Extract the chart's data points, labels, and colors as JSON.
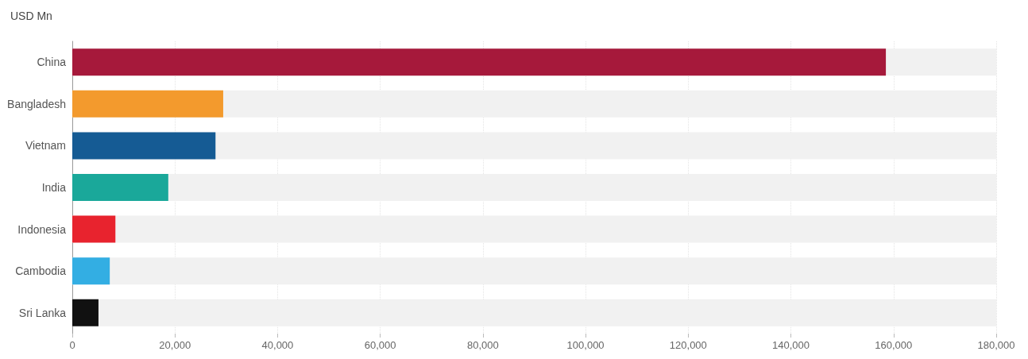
{
  "chart_data": {
    "type": "bar",
    "orientation": "horizontal",
    "ylabel": "USD Mn",
    "categories": [
      "China",
      "Bangladesh",
      "Vietnam",
      "India",
      "Indonesia",
      "Cambodia",
      "Sri Lanka"
    ],
    "values": [
      158500,
      29400,
      27900,
      18700,
      8400,
      7300,
      5100
    ],
    "colors": [
      "#a6193b",
      "#f39a2d",
      "#155b94",
      "#1aa89a",
      "#e8232e",
      "#33aee3",
      "#111111"
    ],
    "xlim": [
      0,
      180000
    ],
    "xticks": [
      0,
      {
        "value": 20000,
        "label": "20,000"
      },
      {
        "value": 40000,
        "label": "40,000"
      },
      {
        "value": 60000,
        "label": "60,000"
      },
      {
        "value": 80000,
        "label": "80,000"
      },
      {
        "value": 100000,
        "label": "100,000"
      },
      {
        "value": 120000,
        "label": "120,000"
      },
      {
        "value": 140000,
        "label": "140,000"
      },
      {
        "value": 160000,
        "label": "160,000"
      },
      {
        "value": 180000,
        "label": "180,000"
      }
    ],
    "grid": "x"
  }
}
